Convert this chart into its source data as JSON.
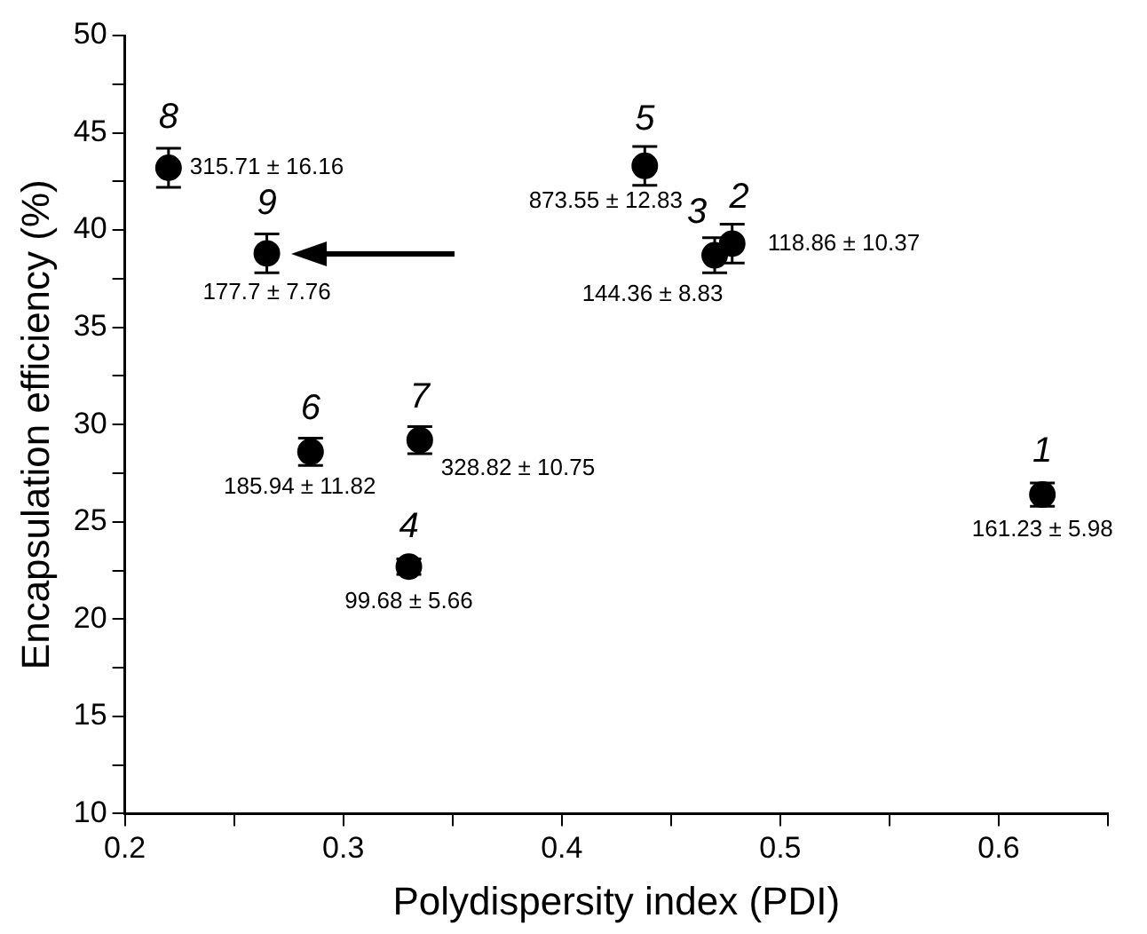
{
  "chart_data": {
    "type": "scatter",
    "xlabel": "Polydispersity index (PDI)",
    "ylabel": "Encapsulation efficiency (%)",
    "x": [
      0.62,
      0.478,
      0.47,
      0.33,
      0.438,
      0.285,
      0.335,
      0.22,
      0.265
    ],
    "values": [
      26.4,
      39.3,
      38.7,
      22.7,
      43.3,
      28.6,
      29.2,
      43.2,
      38.8
    ],
    "errors": [
      0.6,
      1.0,
      0.9,
      0.4,
      1.0,
      0.7,
      0.7,
      1.0,
      1.0
    ],
    "color": "#000000",
    "xlim": [
      0.2,
      0.65
    ],
    "ylim": [
      10,
      50
    ],
    "xticks": [
      0.2,
      {
        "value": 0.25,
        "label": null
      },
      0.3,
      {
        "value": 0.35,
        "label": null
      },
      0.4,
      {
        "value": 0.45,
        "label": null
      },
      0.5,
      {
        "value": 0.55,
        "label": null
      },
      0.6,
      {
        "value": 0.65,
        "label": null
      }
    ],
    "yticks": [
      10,
      {
        "value": 12.5,
        "label": null
      },
      15,
      {
        "value": 17.5,
        "label": null
      },
      20,
      {
        "value": 22.5,
        "label": null
      },
      25,
      {
        "value": 27.5,
        "label": null
      },
      30,
      {
        "value": 32.5,
        "label": null
      },
      35,
      {
        "value": 37.5,
        "label": null
      },
      40,
      {
        "value": 42.5,
        "label": null
      },
      45,
      {
        "value": 47.5,
        "label": null
      },
      50
    ],
    "annotations": [
      {
        "text": "1",
        "x": 0.62,
        "y": 26.4
      },
      {
        "text": "161.23 ± 5.98",
        "x": 0.62,
        "y": 26.4
      },
      {
        "text": "2",
        "x": 0.478,
        "y": 39.3
      },
      {
        "text": "118.86 ± 10.37",
        "x": 0.478,
        "y": 39.3
      },
      {
        "text": "3",
        "x": 0.47,
        "y": 38.7
      },
      {
        "text": "144.36 ± 8.83",
        "x": 0.47,
        "y": 38.7
      },
      {
        "text": "4",
        "x": 0.33,
        "y": 22.7
      },
      {
        "text": "99.68 ± 5.66",
        "x": 0.33,
        "y": 22.7
      },
      {
        "text": "5",
        "x": 0.438,
        "y": 43.3
      },
      {
        "text": "873.55 ± 12.83",
        "x": 0.438,
        "y": 43.3
      },
      {
        "text": "6",
        "x": 0.285,
        "y": 28.6
      },
      {
        "text": "185.94 ± 11.82",
        "x": 0.285,
        "y": 28.6
      },
      {
        "text": "7",
        "x": 0.335,
        "y": 29.2
      },
      {
        "text": "328.82 ± 10.75",
        "x": 0.335,
        "y": 29.2
      },
      {
        "text": "8",
        "x": 0.22,
        "y": 43.2
      },
      {
        "text": "315.71 ± 16.16",
        "x": 0.22,
        "y": 43.2
      },
      {
        "text": "9",
        "x": 0.265,
        "y": 38.8
      },
      {
        "text": "177.7 ± 7.76",
        "x": 0.265,
        "y": 38.8
      }
    ]
  }
}
